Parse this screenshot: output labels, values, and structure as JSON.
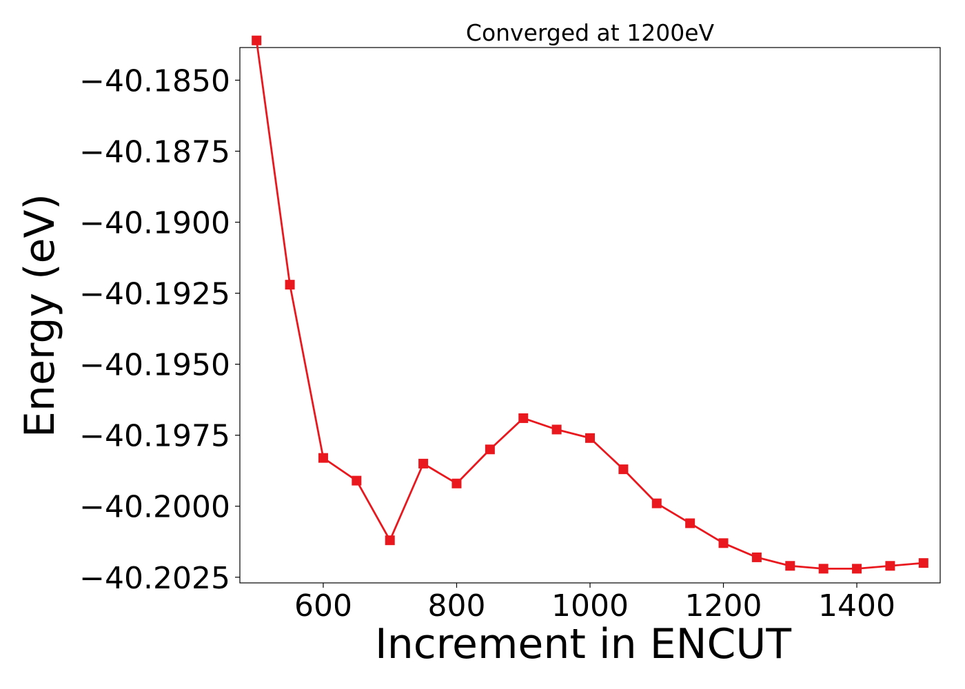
{
  "chart_data": {
    "type": "line",
    "title": "Converged at 1200eV",
    "xlabel": "Increment in ENCUT",
    "ylabel": "Energy (eV)",
    "xlim": [
      475,
      1525
    ],
    "ylim": [
      -40.2027,
      -40.18385
    ],
    "xticks": [
      600,
      800,
      1000,
      1200,
      1400
    ],
    "xtick_labels": [
      "600",
      "800",
      "1000",
      "1200",
      "1400"
    ],
    "yticks": [
      -40.185,
      -40.1875,
      -40.19,
      -40.1925,
      -40.195,
      -40.1975,
      -40.2,
      -40.2025
    ],
    "ytick_labels": [
      "−40.1850",
      "−40.1875",
      "−40.1900",
      "−40.1925",
      "−40.1950",
      "−40.1975",
      "−40.2000",
      "−40.2025"
    ],
    "grid": false,
    "series": [
      {
        "color": "#e8181e",
        "marker": "square",
        "x": [
          500,
          550,
          600,
          650,
          700,
          750,
          800,
          850,
          900,
          950,
          1000,
          1050,
          1100,
          1150,
          1200,
          1250,
          1300,
          1350,
          1400,
          1450,
          1500
        ],
        "y": [
          -40.1836,
          -40.1922,
          -40.1983,
          -40.1991,
          -40.2012,
          -40.1985,
          -40.1992,
          -40.198,
          -40.1969,
          -40.1973,
          -40.1976,
          -40.1987,
          -40.1999,
          -40.2006,
          -40.2013,
          -40.2018,
          -40.2021,
          -40.2022,
          -40.2022,
          -40.2021,
          -40.202
        ]
      }
    ]
  }
}
